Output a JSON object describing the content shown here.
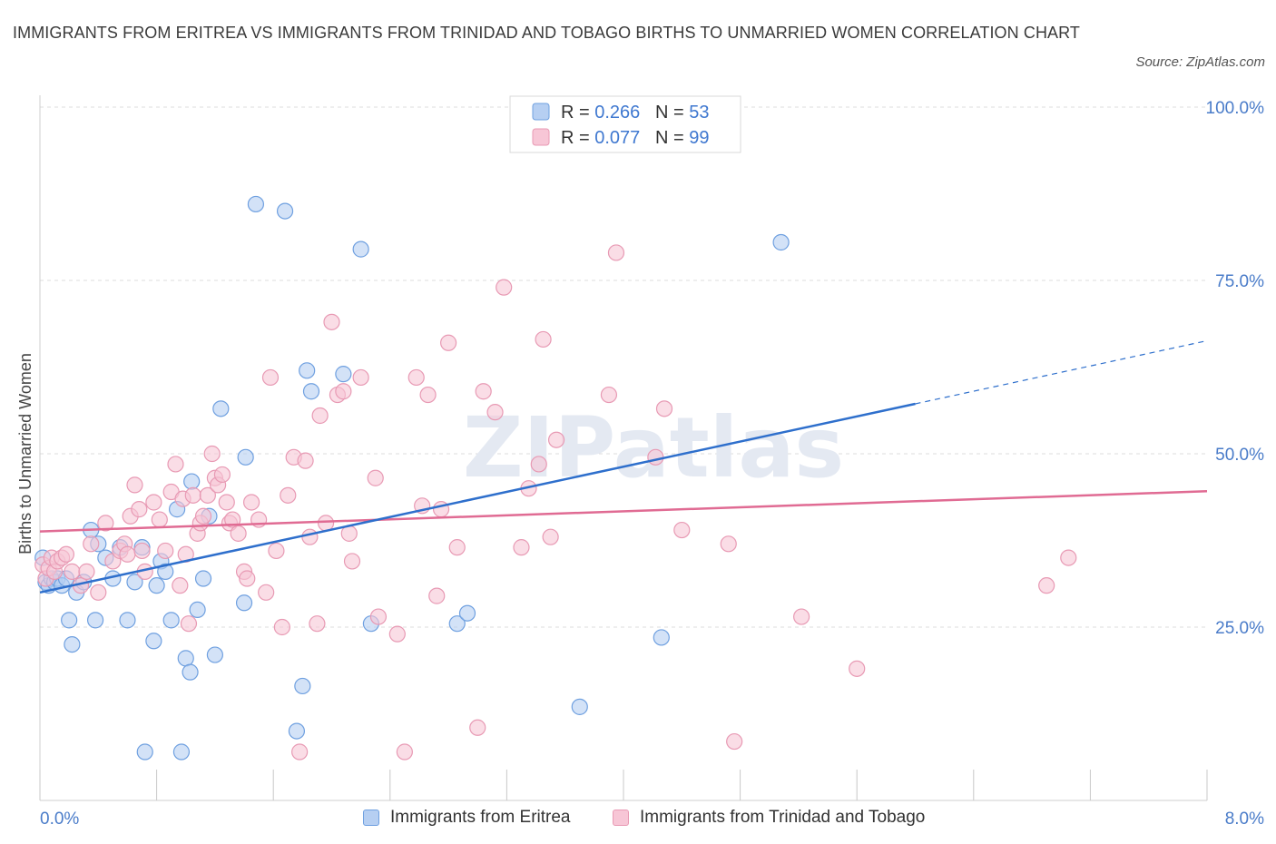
{
  "chart_data": {
    "type": "scatter",
    "title": "IMMIGRANTS FROM ERITREA VS IMMIGRANTS FROM TRINIDAD AND TOBAGO BIRTHS TO UNMARRIED WOMEN CORRELATION CHART",
    "source": "Source: ZipAtlas.com",
    "ylabel": "Births to Unmarried Women",
    "xlabel": "",
    "xlim": [
      0,
      8
    ],
    "ylim": [
      0,
      100
    ],
    "x_tick_labels": [
      "0.0%",
      "8.0%"
    ],
    "y_tick_labels": [
      "25.0%",
      "50.0%",
      "75.0%",
      "100.0%"
    ],
    "y_ticks": [
      25,
      50,
      75,
      100
    ],
    "grid": true,
    "watermark": "ZIPatlas",
    "legend_top": {
      "placement": "top-center",
      "rows": [
        {
          "r_label": "R = ",
          "r_value": "0.266",
          "n_label": "N = ",
          "n_value": "53"
        },
        {
          "r_label": "R = ",
          "r_value": "0.077",
          "n_label": "N = ",
          "n_value": "99"
        }
      ]
    },
    "series": [
      {
        "name": "Immigrants from Eritrea",
        "color": "#6fa0e0",
        "fill": "#b6cff2",
        "line_color": "#2e6fcc",
        "trend": {
          "x0": 0,
          "y0": 30,
          "x1": 6.0,
          "y1": 57.2,
          "dash_to_x": 8,
          "dash_to_y": 66.3
        },
        "points": [
          [
            0.02,
            35
          ],
          [
            0.04,
            31.5
          ],
          [
            0.06,
            31
          ],
          [
            0.08,
            32
          ],
          [
            0.1,
            31.5
          ],
          [
            0.12,
            32
          ],
          [
            0.15,
            31
          ],
          [
            0.18,
            32
          ],
          [
            0.2,
            26
          ],
          [
            0.22,
            22.5
          ],
          [
            0.25,
            30
          ],
          [
            0.3,
            31.5
          ],
          [
            0.35,
            39
          ],
          [
            0.38,
            26
          ],
          [
            0.4,
            37
          ],
          [
            0.45,
            35
          ],
          [
            0.5,
            32
          ],
          [
            0.55,
            36.5
          ],
          [
            0.6,
            26
          ],
          [
            0.65,
            31.5
          ],
          [
            0.7,
            36.5
          ],
          [
            0.72,
            7
          ],
          [
            0.78,
            23
          ],
          [
            0.8,
            31
          ],
          [
            0.83,
            34.5
          ],
          [
            0.86,
            33
          ],
          [
            0.9,
            26
          ],
          [
            0.94,
            42
          ],
          [
            0.97,
            7
          ],
          [
            1.0,
            20.5
          ],
          [
            1.03,
            18.5
          ],
          [
            1.04,
            46
          ],
          [
            1.08,
            27.5
          ],
          [
            1.12,
            32
          ],
          [
            1.16,
            41
          ],
          [
            1.2,
            21
          ],
          [
            1.24,
            56.5
          ],
          [
            1.4,
            28.5
          ],
          [
            1.41,
            49.5
          ],
          [
            1.48,
            86
          ],
          [
            1.68,
            85
          ],
          [
            1.76,
            10
          ],
          [
            1.8,
            16.5
          ],
          [
            1.83,
            62
          ],
          [
            1.86,
            59
          ],
          [
            2.08,
            61.5
          ],
          [
            2.2,
            79.5
          ],
          [
            2.27,
            25.5
          ],
          [
            2.86,
            25.5
          ],
          [
            2.93,
            27
          ],
          [
            3.7,
            13.5
          ],
          [
            4.26,
            23.5
          ],
          [
            5.08,
            80.5
          ]
        ]
      },
      {
        "name": "Immigrants from Trinidad and Tobago",
        "color": "#e89ab4",
        "fill": "#f7c6d6",
        "line_color": "#e06b93",
        "trend": {
          "x0": 0,
          "y0": 38.8,
          "x1": 8,
          "y1": 44.6
        },
        "points": [
          [
            0.02,
            34
          ],
          [
            0.04,
            32
          ],
          [
            0.06,
            33.5
          ],
          [
            0.08,
            35
          ],
          [
            0.1,
            33
          ],
          [
            0.12,
            34.5
          ],
          [
            0.15,
            35
          ],
          [
            0.18,
            35.5
          ],
          [
            0.22,
            33
          ],
          [
            0.28,
            31
          ],
          [
            0.32,
            33
          ],
          [
            0.35,
            37
          ],
          [
            0.4,
            30
          ],
          [
            0.45,
            40
          ],
          [
            0.5,
            34.5
          ],
          [
            0.55,
            36
          ],
          [
            0.58,
            37
          ],
          [
            0.6,
            35.5
          ],
          [
            0.62,
            41
          ],
          [
            0.65,
            45.5
          ],
          [
            0.68,
            42
          ],
          [
            0.7,
            36
          ],
          [
            0.72,
            33
          ],
          [
            0.78,
            43
          ],
          [
            0.82,
            40.5
          ],
          [
            0.86,
            36
          ],
          [
            0.9,
            44.5
          ],
          [
            0.93,
            48.5
          ],
          [
            0.96,
            31
          ],
          [
            0.98,
            43.5
          ],
          [
            1.0,
            35.5
          ],
          [
            1.02,
            25.5
          ],
          [
            1.05,
            44
          ],
          [
            1.08,
            38.5
          ],
          [
            1.1,
            40
          ],
          [
            1.12,
            41
          ],
          [
            1.15,
            44
          ],
          [
            1.18,
            50
          ],
          [
            1.2,
            46.5
          ],
          [
            1.22,
            45.5
          ],
          [
            1.25,
            47
          ],
          [
            1.28,
            43
          ],
          [
            1.3,
            40
          ],
          [
            1.32,
            40.5
          ],
          [
            1.36,
            38.5
          ],
          [
            1.4,
            33
          ],
          [
            1.42,
            32
          ],
          [
            1.45,
            43
          ],
          [
            1.5,
            40.5
          ],
          [
            1.55,
            30
          ],
          [
            1.58,
            61
          ],
          [
            1.62,
            36
          ],
          [
            1.66,
            25
          ],
          [
            1.7,
            44
          ],
          [
            1.74,
            49.5
          ],
          [
            1.78,
            7
          ],
          [
            1.82,
            49
          ],
          [
            1.85,
            38
          ],
          [
            1.9,
            25.5
          ],
          [
            1.92,
            55.5
          ],
          [
            1.96,
            40
          ],
          [
            2.0,
            69
          ],
          [
            2.04,
            58.5
          ],
          [
            2.08,
            59
          ],
          [
            2.12,
            38.5
          ],
          [
            2.14,
            34.5
          ],
          [
            2.2,
            61
          ],
          [
            2.3,
            46.5
          ],
          [
            2.32,
            26.5
          ],
          [
            2.45,
            24
          ],
          [
            2.5,
            7
          ],
          [
            2.58,
            61
          ],
          [
            2.62,
            42.5
          ],
          [
            2.66,
            58.5
          ],
          [
            2.72,
            29.5
          ],
          [
            2.75,
            42
          ],
          [
            2.8,
            66
          ],
          [
            2.86,
            36.5
          ],
          [
            3.0,
            10.5
          ],
          [
            3.04,
            59
          ],
          [
            3.12,
            56
          ],
          [
            3.18,
            74
          ],
          [
            3.3,
            36.5
          ],
          [
            3.35,
            45
          ],
          [
            3.42,
            48.5
          ],
          [
            3.45,
            66.5
          ],
          [
            3.5,
            38
          ],
          [
            3.54,
            52
          ],
          [
            3.9,
            58.5
          ],
          [
            3.95,
            79
          ],
          [
            4.22,
            49.5
          ],
          [
            4.28,
            56.5
          ],
          [
            4.4,
            39
          ],
          [
            4.72,
            37
          ],
          [
            4.76,
            8.5
          ],
          [
            5.22,
            26.5
          ],
          [
            5.6,
            19
          ],
          [
            6.9,
            31
          ],
          [
            7.05,
            35
          ]
        ]
      }
    ]
  }
}
